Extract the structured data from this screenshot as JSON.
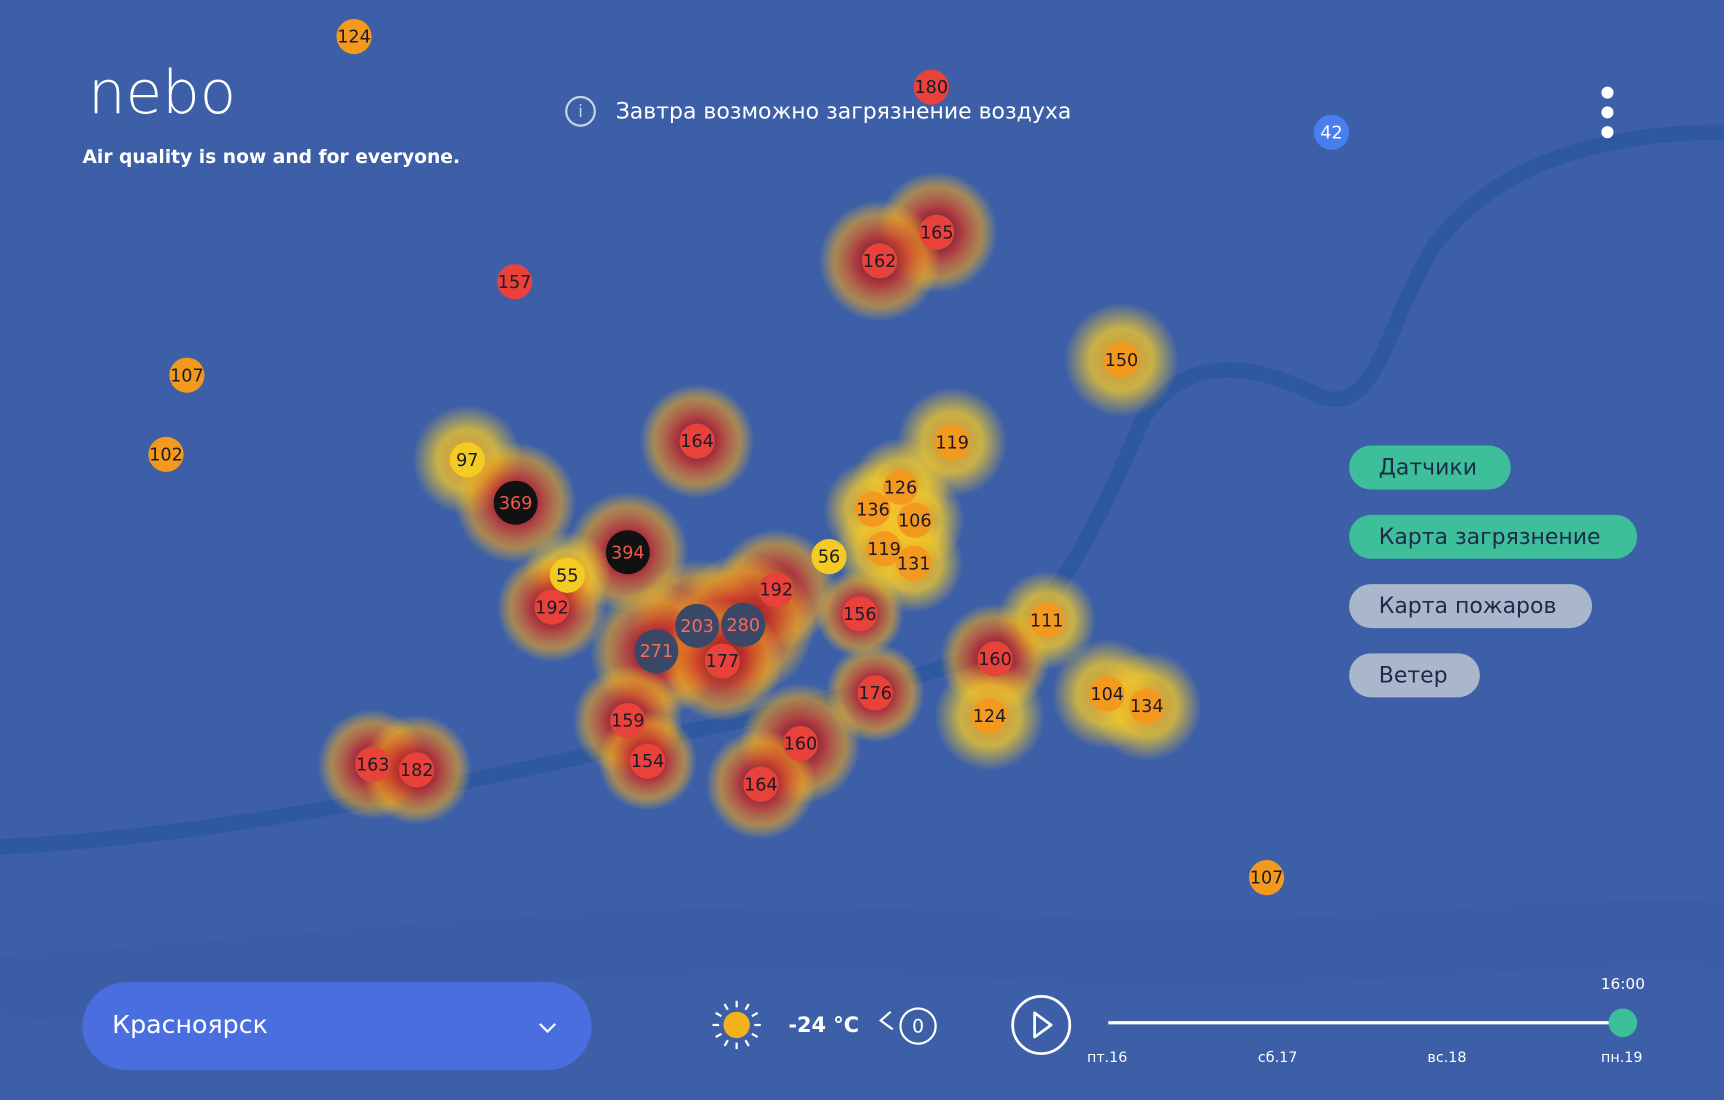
{
  "header": {
    "logo": "nebo",
    "tagline": "Air quality is now and for everyone."
  },
  "notice": "Завтра возможно загрязнение воздуха",
  "layers": [
    "Датчики",
    "Карта загрязнение",
    "Карта пожаров",
    "Ветер"
  ],
  "city": "Красноярск",
  "weather": {
    "temperature": "-24 °C",
    "wind": "0"
  },
  "timeline": {
    "current_time": "16:00",
    "days": [
      "пт.16",
      "сб.17",
      "вс.18",
      "пн.19"
    ]
  },
  "markers": [
    124,
    180,
    42,
    157,
    107,
    102,
    165,
    162,
    150,
    164,
    119,
    97,
    369,
    126,
    136,
    106,
    394,
    56,
    119,
    131,
    55,
    192,
    192,
    156,
    111,
    203,
    280,
    271,
    177,
    160,
    176,
    104,
    134,
    124,
    159,
    160,
    163,
    182,
    154,
    164,
    107
  ]
}
